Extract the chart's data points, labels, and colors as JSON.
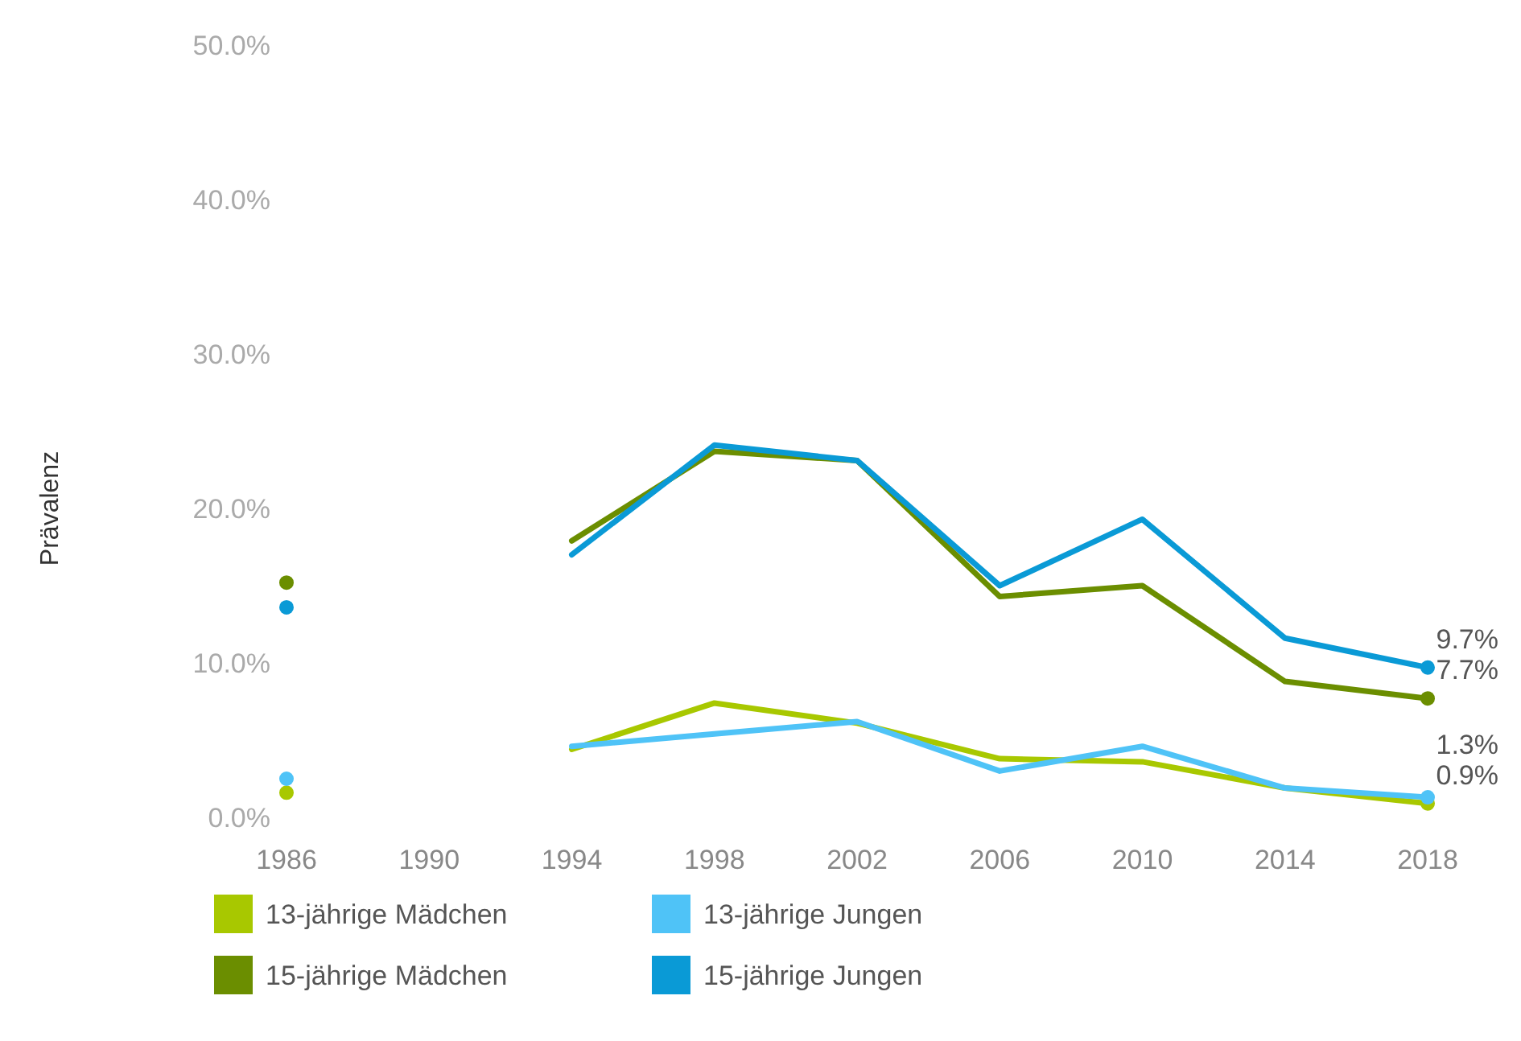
{
  "chart_data": {
    "type": "line",
    "ylabel": "Prävalenz",
    "x": [
      1986,
      1990,
      1994,
      1998,
      2002,
      2006,
      2010,
      2014,
      2018
    ],
    "xlim": [
      1986,
      2018
    ],
    "xticks": [
      1986,
      1990,
      1994,
      1998,
      2002,
      2006,
      2010,
      2014,
      2018
    ],
    "ylim": [
      0,
      50
    ],
    "yticks": [
      {
        "value": 0,
        "label": "0.0%"
      },
      {
        "value": 10,
        "label": "10.0%"
      },
      {
        "value": 20,
        "label": "20.0%"
      },
      {
        "value": 30,
        "label": "30.0%"
      },
      {
        "value": 40,
        "label": "40.0%"
      },
      {
        "value": 50,
        "label": "50.0%"
      }
    ],
    "legend": "bottom",
    "grid": false,
    "series": [
      {
        "name": "13-jährige Mädchen",
        "color": "#a8c800",
        "values": [
          1.6,
          null,
          4.4,
          7.4,
          6.1,
          3.8,
          3.6,
          1.9,
          0.9
        ],
        "value_labels": [
          null,
          null,
          null,
          null,
          null,
          null,
          null,
          null,
          "0.9%"
        ]
      },
      {
        "name": "13-jährige Jungen",
        "color": "#4fc3f7",
        "values": [
          2.5,
          null,
          4.6,
          5.4,
          6.2,
          3.0,
          4.6,
          1.9,
          1.3
        ],
        "value_labels": [
          null,
          null,
          null,
          null,
          null,
          null,
          null,
          null,
          "1.3%"
        ]
      },
      {
        "name": "15-jährige Mädchen",
        "color": "#6b8e00",
        "values": [
          15.2,
          null,
          17.9,
          23.7,
          23.1,
          14.3,
          15.0,
          8.8,
          7.7
        ],
        "value_labels": [
          null,
          null,
          null,
          null,
          null,
          null,
          null,
          null,
          "7.7%"
        ]
      },
      {
        "name": "15-jährige Jungen",
        "color": "#0a9ad6",
        "values": [
          13.6,
          null,
          17.0,
          24.1,
          23.1,
          15.0,
          19.3,
          11.6,
          9.7
        ],
        "value_labels": [
          null,
          null,
          null,
          null,
          null,
          null,
          null,
          null,
          "9.7%"
        ]
      }
    ]
  }
}
